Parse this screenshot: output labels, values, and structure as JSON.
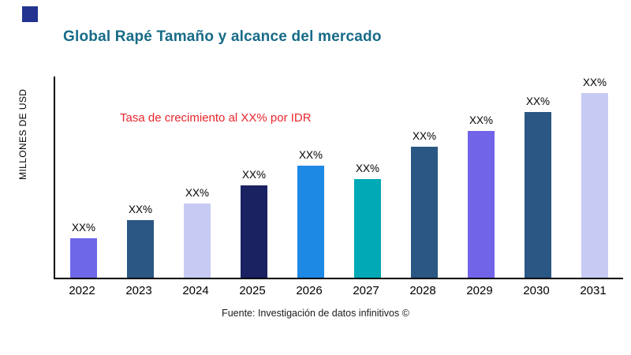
{
  "brand": {
    "logo_color": "#23338F"
  },
  "accent": {
    "title_color": "#176B87",
    "annotation_color": "#E8262D"
  },
  "chart_data": {
    "type": "bar",
    "title": "Global Rapé Tamaño y alcance del mercado",
    "ylabel": "MILLONES DE USD",
    "xlabel": "",
    "annotation": "Tasa de crecimiento al XX% por IDR",
    "source": "Fuente: Investigación de datos infinitivos ©",
    "categories": [
      "2022",
      "2023",
      "2024",
      "2025",
      "2026",
      "2027",
      "2028",
      "2029",
      "2030",
      "2031"
    ],
    "values": [
      19.5,
      28.5,
      37,
      46,
      55.5,
      49,
      65,
      73,
      82.5,
      92
    ],
    "value_labels": [
      "XX%",
      "XX%",
      "XX%",
      "XX%",
      "XX%",
      "XX%",
      "XX%",
      "XX%",
      "XX%",
      "XX%"
    ],
    "ylim": [
      0,
      100
    ],
    "grid": false,
    "legend_position": "none",
    "colors": [
      "#6E68E8",
      "#2A5783",
      "#C7CAF2",
      "#1A2262",
      "#1E88E5",
      "#00A9B5",
      "#2A5783",
      "#7264E8",
      "#2A5783",
      "#C7CAF2"
    ]
  }
}
